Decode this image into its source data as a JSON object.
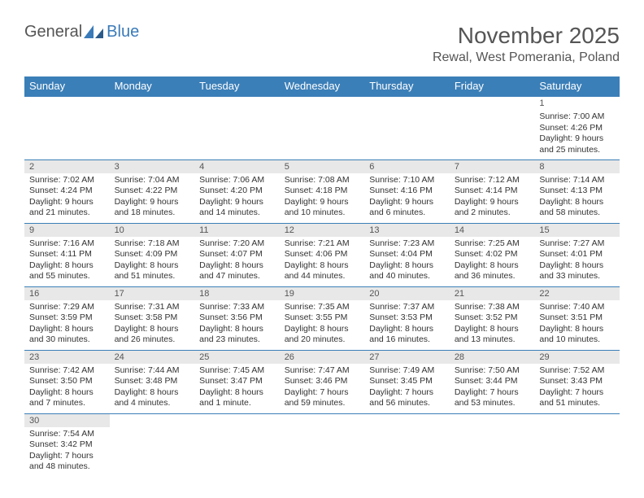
{
  "logo": {
    "general": "General",
    "blue": "Blue"
  },
  "title": "November 2025",
  "location": "Rewal, West Pomerania, Poland",
  "colors": {
    "header_bg": "#3b7fb8",
    "header_text": "#ffffff",
    "daynum_bg": "#e8e8e8",
    "border": "#3b7fb8",
    "text": "#333333",
    "title_text": "#555555"
  },
  "weekdays": [
    "Sunday",
    "Monday",
    "Tuesday",
    "Wednesday",
    "Thursday",
    "Friday",
    "Saturday"
  ],
  "weeks": [
    [
      null,
      null,
      null,
      null,
      null,
      null,
      {
        "n": "1",
        "sr": "Sunrise: 7:00 AM",
        "ss": "Sunset: 4:26 PM",
        "d1": "Daylight: 9 hours",
        "d2": "and 25 minutes."
      }
    ],
    [
      {
        "n": "2",
        "sr": "Sunrise: 7:02 AM",
        "ss": "Sunset: 4:24 PM",
        "d1": "Daylight: 9 hours",
        "d2": "and 21 minutes."
      },
      {
        "n": "3",
        "sr": "Sunrise: 7:04 AM",
        "ss": "Sunset: 4:22 PM",
        "d1": "Daylight: 9 hours",
        "d2": "and 18 minutes."
      },
      {
        "n": "4",
        "sr": "Sunrise: 7:06 AM",
        "ss": "Sunset: 4:20 PM",
        "d1": "Daylight: 9 hours",
        "d2": "and 14 minutes."
      },
      {
        "n": "5",
        "sr": "Sunrise: 7:08 AM",
        "ss": "Sunset: 4:18 PM",
        "d1": "Daylight: 9 hours",
        "d2": "and 10 minutes."
      },
      {
        "n": "6",
        "sr": "Sunrise: 7:10 AM",
        "ss": "Sunset: 4:16 PM",
        "d1": "Daylight: 9 hours",
        "d2": "and 6 minutes."
      },
      {
        "n": "7",
        "sr": "Sunrise: 7:12 AM",
        "ss": "Sunset: 4:14 PM",
        "d1": "Daylight: 9 hours",
        "d2": "and 2 minutes."
      },
      {
        "n": "8",
        "sr": "Sunrise: 7:14 AM",
        "ss": "Sunset: 4:13 PM",
        "d1": "Daylight: 8 hours",
        "d2": "and 58 minutes."
      }
    ],
    [
      {
        "n": "9",
        "sr": "Sunrise: 7:16 AM",
        "ss": "Sunset: 4:11 PM",
        "d1": "Daylight: 8 hours",
        "d2": "and 55 minutes."
      },
      {
        "n": "10",
        "sr": "Sunrise: 7:18 AM",
        "ss": "Sunset: 4:09 PM",
        "d1": "Daylight: 8 hours",
        "d2": "and 51 minutes."
      },
      {
        "n": "11",
        "sr": "Sunrise: 7:20 AM",
        "ss": "Sunset: 4:07 PM",
        "d1": "Daylight: 8 hours",
        "d2": "and 47 minutes."
      },
      {
        "n": "12",
        "sr": "Sunrise: 7:21 AM",
        "ss": "Sunset: 4:06 PM",
        "d1": "Daylight: 8 hours",
        "d2": "and 44 minutes."
      },
      {
        "n": "13",
        "sr": "Sunrise: 7:23 AM",
        "ss": "Sunset: 4:04 PM",
        "d1": "Daylight: 8 hours",
        "d2": "and 40 minutes."
      },
      {
        "n": "14",
        "sr": "Sunrise: 7:25 AM",
        "ss": "Sunset: 4:02 PM",
        "d1": "Daylight: 8 hours",
        "d2": "and 36 minutes."
      },
      {
        "n": "15",
        "sr": "Sunrise: 7:27 AM",
        "ss": "Sunset: 4:01 PM",
        "d1": "Daylight: 8 hours",
        "d2": "and 33 minutes."
      }
    ],
    [
      {
        "n": "16",
        "sr": "Sunrise: 7:29 AM",
        "ss": "Sunset: 3:59 PM",
        "d1": "Daylight: 8 hours",
        "d2": "and 30 minutes."
      },
      {
        "n": "17",
        "sr": "Sunrise: 7:31 AM",
        "ss": "Sunset: 3:58 PM",
        "d1": "Daylight: 8 hours",
        "d2": "and 26 minutes."
      },
      {
        "n": "18",
        "sr": "Sunrise: 7:33 AM",
        "ss": "Sunset: 3:56 PM",
        "d1": "Daylight: 8 hours",
        "d2": "and 23 minutes."
      },
      {
        "n": "19",
        "sr": "Sunrise: 7:35 AM",
        "ss": "Sunset: 3:55 PM",
        "d1": "Daylight: 8 hours",
        "d2": "and 20 minutes."
      },
      {
        "n": "20",
        "sr": "Sunrise: 7:37 AM",
        "ss": "Sunset: 3:53 PM",
        "d1": "Daylight: 8 hours",
        "d2": "and 16 minutes."
      },
      {
        "n": "21",
        "sr": "Sunrise: 7:38 AM",
        "ss": "Sunset: 3:52 PM",
        "d1": "Daylight: 8 hours",
        "d2": "and 13 minutes."
      },
      {
        "n": "22",
        "sr": "Sunrise: 7:40 AM",
        "ss": "Sunset: 3:51 PM",
        "d1": "Daylight: 8 hours",
        "d2": "and 10 minutes."
      }
    ],
    [
      {
        "n": "23",
        "sr": "Sunrise: 7:42 AM",
        "ss": "Sunset: 3:50 PM",
        "d1": "Daylight: 8 hours",
        "d2": "and 7 minutes."
      },
      {
        "n": "24",
        "sr": "Sunrise: 7:44 AM",
        "ss": "Sunset: 3:48 PM",
        "d1": "Daylight: 8 hours",
        "d2": "and 4 minutes."
      },
      {
        "n": "25",
        "sr": "Sunrise: 7:45 AM",
        "ss": "Sunset: 3:47 PM",
        "d1": "Daylight: 8 hours",
        "d2": "and 1 minute."
      },
      {
        "n": "26",
        "sr": "Sunrise: 7:47 AM",
        "ss": "Sunset: 3:46 PM",
        "d1": "Daylight: 7 hours",
        "d2": "and 59 minutes."
      },
      {
        "n": "27",
        "sr": "Sunrise: 7:49 AM",
        "ss": "Sunset: 3:45 PM",
        "d1": "Daylight: 7 hours",
        "d2": "and 56 minutes."
      },
      {
        "n": "28",
        "sr": "Sunrise: 7:50 AM",
        "ss": "Sunset: 3:44 PM",
        "d1": "Daylight: 7 hours",
        "d2": "and 53 minutes."
      },
      {
        "n": "29",
        "sr": "Sunrise: 7:52 AM",
        "ss": "Sunset: 3:43 PM",
        "d1": "Daylight: 7 hours",
        "d2": "and 51 minutes."
      }
    ],
    [
      {
        "n": "30",
        "sr": "Sunrise: 7:54 AM",
        "ss": "Sunset: 3:42 PM",
        "d1": "Daylight: 7 hours",
        "d2": "and 48 minutes."
      },
      null,
      null,
      null,
      null,
      null,
      null
    ]
  ]
}
